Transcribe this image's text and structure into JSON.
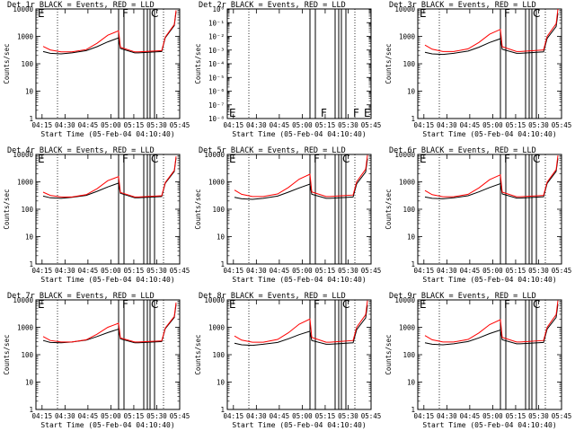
{
  "chart_data": [
    {
      "type": "line",
      "title": "Det 1r BLACK = Events, RED = LLD",
      "ylabel": "Counts/sec",
      "xlabel": "Start Time (05-Feb-04 04:10:40)",
      "xticks": [
        "04:15",
        "04:30",
        "04:45",
        "05:00",
        "05:15",
        "05:30",
        "05:45"
      ],
      "yscale": "log",
      "ylim": [
        1,
        10000
      ],
      "yticks": [
        "1",
        "10",
        "100",
        "1000",
        "10000"
      ],
      "markers": [
        "E",
        "F",
        "C"
      ],
      "series": [
        {
          "color": "#000000",
          "x": [
            4,
            8,
            14,
            20,
            28,
            34,
            40,
            46,
            47,
            55,
            57,
            70,
            72,
            77,
            78
          ],
          "y": [
            280,
            240,
            230,
            250,
            300,
            420,
            630,
            880,
            360,
            250,
            250,
            280,
            900,
            2500,
            8000
          ]
        },
        {
          "color": "#ff0000",
          "x": [
            4,
            8,
            14,
            20,
            28,
            34,
            40,
            46,
            47,
            55,
            57,
            70,
            72,
            77,
            78
          ],
          "y": [
            430,
            320,
            270,
            270,
            330,
            560,
            1100,
            1600,
            400,
            270,
            270,
            300,
            950,
            2700,
            9000
          ]
        }
      ]
    },
    {
      "type": "line",
      "title": "Det 2r BLACK = Events, RED = LLD",
      "ylabel": "Counts/sec",
      "xlabel": "Start Time (05-Feb-04 04:10:40)",
      "xticks": [
        "04:15",
        "04:30",
        "04:45",
        "05:00",
        "05:15",
        "05:30",
        "05:45"
      ],
      "yscale": "log",
      "ylim": [
        1e-08,
        1
      ],
      "yticks": [
        "10⁻⁸",
        "10⁻⁷",
        "10⁻⁶",
        "10⁻⁵",
        "10⁻⁴",
        "10⁻³",
        "10⁻²",
        "10⁻¹",
        "10⁰"
      ],
      "markers": [
        "E",
        "F",
        "F",
        "E"
      ],
      "series": []
    },
    {
      "type": "line",
      "title": "Det 3r BLACK = Events, RED = LLD",
      "ylabel": "Counts/sec",
      "xlabel": "Start Time (05-Feb-04 04:10:40)",
      "xticks": [
        "04:15",
        "04:30",
        "04:45",
        "05:00",
        "05:15",
        "05:30",
        "05:45"
      ],
      "yscale": "log",
      "ylim": [
        1,
        10000
      ],
      "yticks": [
        "1",
        "10",
        "100",
        "1000",
        "10000"
      ],
      "markers": [
        "E",
        "F",
        "C"
      ],
      "series": [
        {
          "color": "#000000",
          "x": [
            4,
            8,
            14,
            20,
            28,
            34,
            40,
            46,
            47,
            55,
            57,
            70,
            72,
            77,
            78
          ],
          "y": [
            260,
            230,
            220,
            240,
            290,
            400,
            600,
            820,
            340,
            240,
            240,
            270,
            850,
            2300,
            7000
          ]
        },
        {
          "color": "#ff0000",
          "x": [
            4,
            8,
            14,
            20,
            28,
            34,
            40,
            46,
            47,
            55,
            57,
            70,
            72,
            77,
            78
          ],
          "y": [
            480,
            340,
            280,
            280,
            350,
            600,
            1200,
            1800,
            420,
            280,
            280,
            320,
            1000,
            2900,
            10000
          ]
        }
      ]
    },
    {
      "type": "line",
      "title": "Det 4r BLACK = Events, RED = LLD",
      "ylabel": "Counts/sec",
      "xlabel": "Start Time (05-Feb-04 04:10:40)",
      "xticks": [
        "04:15",
        "04:30",
        "04:45",
        "05:00",
        "05:15",
        "05:30",
        "05:45"
      ],
      "yscale": "log",
      "ylim": [
        1,
        10000
      ],
      "yticks": [
        "1",
        "10",
        "100",
        "1000",
        "10000"
      ],
      "markers": [
        "E",
        "F",
        "C"
      ],
      "series": [
        {
          "color": "#000000",
          "x": [
            4,
            8,
            14,
            20,
            28,
            34,
            40,
            46,
            47,
            55,
            57,
            70,
            72,
            77,
            78
          ],
          "y": [
            300,
            260,
            250,
            270,
            320,
            450,
            650,
            900,
            380,
            260,
            260,
            290,
            900,
            2400,
            7500
          ]
        },
        {
          "color": "#ff0000",
          "x": [
            4,
            8,
            14,
            20,
            28,
            34,
            40,
            46,
            47,
            55,
            57,
            70,
            72,
            77,
            78
          ],
          "y": [
            420,
            320,
            280,
            280,
            340,
            560,
            1100,
            1550,
            410,
            280,
            280,
            310,
            950,
            2600,
            8500
          ]
        }
      ]
    },
    {
      "type": "line",
      "title": "Det 5r BLACK = Events, RED = LLD",
      "ylabel": "Counts/sec",
      "xlabel": "Start Time (05-Feb-04 04:10:40)",
      "xticks": [
        "04:15",
        "04:30",
        "04:45",
        "05:00",
        "05:15",
        "05:30",
        "05:45"
      ],
      "yscale": "log",
      "ylim": [
        1,
        10000
      ],
      "yticks": [
        "1",
        "10",
        "100",
        "1000",
        "10000"
      ],
      "markers": [
        "E",
        "F",
        "C"
      ],
      "series": [
        {
          "color": "#000000",
          "x": [
            4,
            8,
            14,
            20,
            28,
            34,
            40,
            46,
            47,
            55,
            57,
            70,
            72,
            77,
            78
          ],
          "y": [
            270,
            240,
            230,
            250,
            300,
            420,
            600,
            830,
            350,
            250,
            250,
            280,
            850,
            2300,
            7000
          ]
        },
        {
          "color": "#ff0000",
          "x": [
            4,
            8,
            14,
            20,
            28,
            34,
            40,
            46,
            47,
            55,
            57,
            70,
            72,
            77,
            78
          ],
          "y": [
            500,
            350,
            290,
            290,
            360,
            620,
            1250,
            1900,
            430,
            290,
            290,
            330,
            1000,
            2900,
            9500
          ]
        }
      ]
    },
    {
      "type": "line",
      "title": "Det 6r BLACK = Events, RED = LLD",
      "ylabel": "Counts/sec",
      "xlabel": "Start Time (05-Feb-04 04:10:40)",
      "xticks": [
        "04:15",
        "04:30",
        "04:45",
        "05:00",
        "05:15",
        "05:30",
        "05:45"
      ],
      "yscale": "log",
      "ylim": [
        1,
        10000
      ],
      "yticks": [
        "1",
        "10",
        "100",
        "1000",
        "10000"
      ],
      "markers": [
        "E",
        "F",
        "C"
      ],
      "series": [
        {
          "color": "#000000",
          "x": [
            4,
            8,
            14,
            20,
            28,
            34,
            40,
            46,
            47,
            55,
            57,
            70,
            72,
            77,
            78
          ],
          "y": [
            280,
            250,
            240,
            260,
            310,
            430,
            620,
            860,
            360,
            255,
            255,
            285,
            880,
            2400,
            7200
          ]
        },
        {
          "color": "#ff0000",
          "x": [
            4,
            8,
            14,
            20,
            28,
            34,
            40,
            46,
            47,
            55,
            57,
            70,
            72,
            77,
            78
          ],
          "y": [
            480,
            340,
            285,
            285,
            350,
            600,
            1200,
            1800,
            420,
            285,
            285,
            320,
            980,
            2800,
            9200
          ]
        }
      ]
    },
    {
      "type": "line",
      "title": "Det 7r BLACK = Events, RED = LLD",
      "ylabel": "Counts/sec",
      "xlabel": "Start Time (05-Feb-04 04:10:40)",
      "xticks": [
        "04:15",
        "04:30",
        "04:45",
        "05:00",
        "05:15",
        "05:30",
        "05:45"
      ],
      "yscale": "log",
      "ylim": [
        1,
        10000
      ],
      "yticks": [
        "1",
        "10",
        "100",
        "1000",
        "10000"
      ],
      "markers": [
        "E",
        "F",
        "C"
      ],
      "series": [
        {
          "color": "#000000",
          "x": [
            4,
            8,
            14,
            20,
            28,
            34,
            40,
            46,
            47,
            55,
            57,
            70,
            72,
            77,
            78
          ],
          "y": [
            330,
            280,
            270,
            290,
            340,
            460,
            640,
            860,
            380,
            270,
            270,
            300,
            900,
            2300,
            6800
          ]
        },
        {
          "color": "#ff0000",
          "x": [
            4,
            8,
            14,
            20,
            28,
            34,
            40,
            46,
            47,
            55,
            57,
            70,
            72,
            77,
            78
          ],
          "y": [
            460,
            330,
            290,
            290,
            350,
            560,
            1000,
            1400,
            410,
            290,
            290,
            320,
            950,
            2500,
            8000
          ]
        }
      ]
    },
    {
      "type": "line",
      "title": "Det 8r BLACK = Events, RED = LLD",
      "ylabel": "Counts/sec",
      "xlabel": "Start Time (05-Feb-04 04:10:40)",
      "xticks": [
        "04:15",
        "04:30",
        "04:45",
        "05:00",
        "05:15",
        "05:30",
        "05:45"
      ],
      "yscale": "log",
      "ylim": [
        1,
        10000
      ],
      "yticks": [
        "1",
        "10",
        "100",
        "1000",
        "10000"
      ],
      "markers": [
        "E",
        "F",
        "C"
      ],
      "series": [
        {
          "color": "#000000",
          "x": [
            4,
            8,
            14,
            20,
            28,
            34,
            40,
            46,
            47,
            55,
            57,
            70,
            72,
            77,
            78
          ],
          "y": [
            260,
            230,
            220,
            240,
            280,
            380,
            540,
            720,
            330,
            240,
            240,
            270,
            820,
            2200,
            6500
          ]
        },
        {
          "color": "#ff0000",
          "x": [
            4,
            8,
            14,
            20,
            28,
            34,
            40,
            46,
            47,
            55,
            57,
            70,
            72,
            77,
            78
          ],
          "y": [
            480,
            340,
            285,
            285,
            360,
            630,
            1300,
            2000,
            430,
            285,
            285,
            330,
            1000,
            2900,
            9500
          ]
        }
      ]
    },
    {
      "type": "line",
      "title": "Det 9r BLACK = Events, RED = LLD",
      "ylabel": "Counts/sec",
      "xlabel": "Start Time (05-Feb-04 04:10:40)",
      "xticks": [
        "04:15",
        "04:30",
        "04:45",
        "05:00",
        "05:15",
        "05:30",
        "05:45"
      ],
      "yscale": "log",
      "ylim": [
        1,
        10000
      ],
      "yticks": [
        "1",
        "10",
        "100",
        "1000",
        "10000"
      ],
      "markers": [
        "E",
        "F",
        "C"
      ],
      "series": [
        {
          "color": "#000000",
          "x": [
            4,
            8,
            14,
            20,
            28,
            34,
            40,
            46,
            47,
            55,
            57,
            70,
            72,
            77,
            78
          ],
          "y": [
            270,
            240,
            230,
            250,
            300,
            410,
            590,
            800,
            350,
            250,
            250,
            280,
            860,
            2300,
            7000
          ]
        },
        {
          "color": "#ff0000",
          "x": [
            4,
            8,
            14,
            20,
            28,
            34,
            40,
            46,
            47,
            55,
            57,
            70,
            72,
            77,
            78
          ],
          "y": [
            500,
            350,
            290,
            290,
            360,
            620,
            1250,
            1900,
            430,
            290,
            290,
            330,
            1000,
            2900,
            9500
          ]
        }
      ]
    }
  ]
}
